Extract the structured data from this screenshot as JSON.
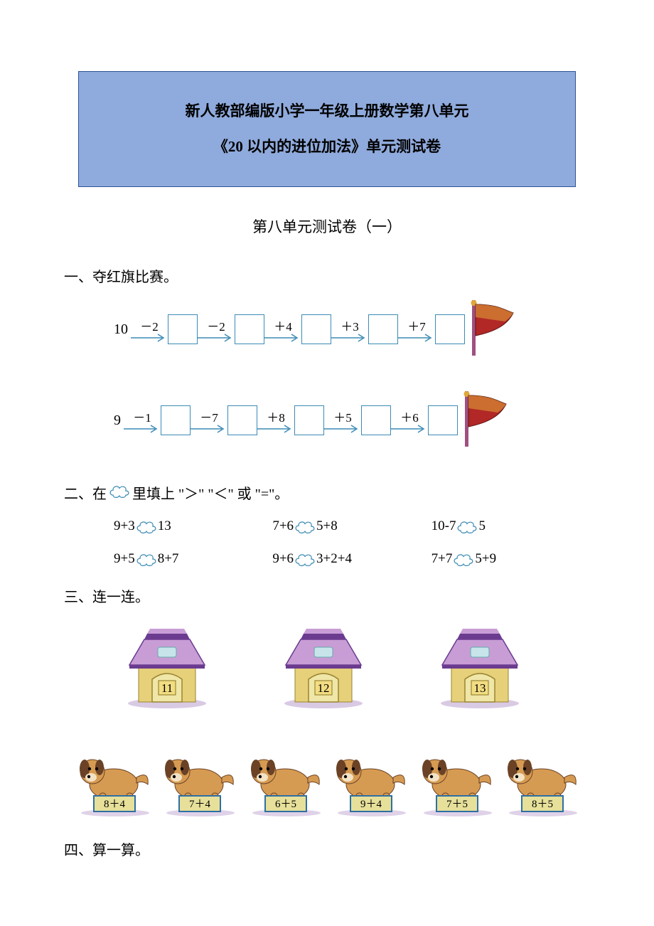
{
  "colors": {
    "header_bg": "#8faadc",
    "header_border": "#2e5396",
    "box_border": "#3b8bb5",
    "arrow": "#3b8bb5",
    "cloud_stroke": "#3b8bb5",
    "flag_red": "#b12826",
    "flag_gold": "#e0a838",
    "flag_pole": "#a05080",
    "house_roof1": "#6a3b8f",
    "house_roof2": "#c89dd6",
    "house_wall": "#e6d07a",
    "house_door_fill": "#efe6a8",
    "house_num_bg": "#f3dd82",
    "dog_body": "#d69b52",
    "dog_dark": "#6b4226",
    "dog_label_bg": "#e6e09a",
    "dog_label_border": "#2f6fa3"
  },
  "header": {
    "line1": "新人教部编版小学一年级上册数学第八单元",
    "line2": "《20 以内的进位加法》单元测试卷"
  },
  "subtitle": "第八单元测试卷（一）",
  "s1": {
    "heading": "一、夺红旗比赛。",
    "chains": [
      {
        "start": "10",
        "ops": [
          "－2",
          "－2",
          "＋4",
          "＋3",
          "＋7"
        ]
      },
      {
        "start": "9",
        "ops": [
          "－1",
          "－7",
          "＋8",
          "＋5",
          "＋6"
        ]
      }
    ]
  },
  "s2": {
    "heading_pre": "二、在",
    "heading_post": "里填上 \"＞\" \"＜\" 或 \"=\"。",
    "items": [
      {
        "l": "9+3",
        "r": "13"
      },
      {
        "l": "7+6",
        "r": "5+8"
      },
      {
        "l": "10-7",
        "r": "5"
      },
      {
        "l": "9+5",
        "r": "8+7"
      },
      {
        "l": "9+6",
        "r": "3+2+4"
      },
      {
        "l": "7+7",
        "r": "5+9"
      }
    ]
  },
  "s3": {
    "heading": "三、连一连。",
    "houses": [
      "11",
      "12",
      "13"
    ],
    "dogs": [
      "8＋4",
      "7＋4",
      "6＋5",
      "9＋4",
      "7＋5",
      "8＋5"
    ]
  },
  "s4": {
    "heading": "四、算一算。"
  }
}
